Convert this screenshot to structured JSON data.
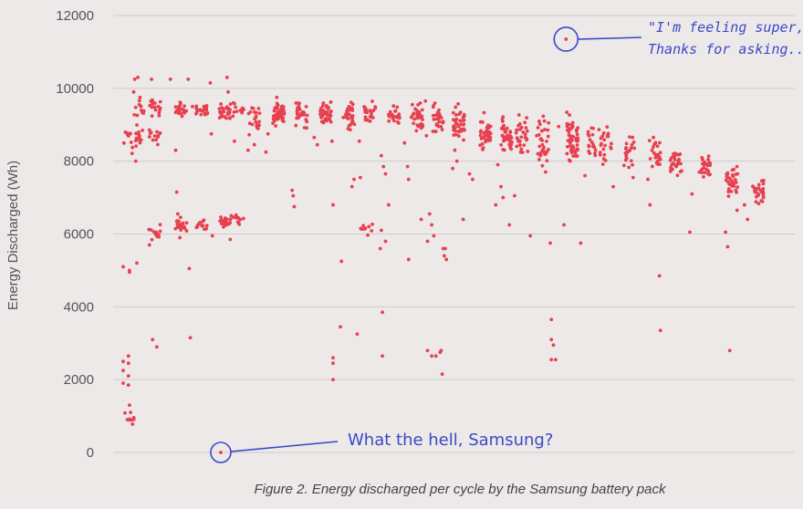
{
  "chart_data": {
    "type": "scatter",
    "caption": "Figure 2. Energy discharged per cycle by the Samsung battery pack",
    "title": "",
    "xlabel": "",
    "ylabel": "Energy Discharged (Wh)",
    "ylim": [
      0,
      12000
    ],
    "yticks": [
      "0",
      "2000",
      "4000",
      "6000",
      "8000",
      "10000",
      "12000"
    ],
    "grid": "horizontal",
    "series": [
      {
        "color": "#e84050",
        "clusters": [
          {
            "x": 0.5,
            "y": 8550,
            "s": 200,
            "n": 10
          },
          {
            "x": 1.5,
            "y": 8650,
            "s": 150,
            "n": 15
          },
          {
            "x": 1.5,
            "y": 9450,
            "s": 120,
            "n": 10
          },
          {
            "x": 3.0,
            "y": 9450,
            "s": 130,
            "n": 16
          },
          {
            "x": 3.0,
            "y": 8700,
            "s": 110,
            "n": 12
          },
          {
            "x": 3.0,
            "y": 6050,
            "s": 90,
            "n": 14
          },
          {
            "x": 5.5,
            "y": 9420,
            "s": 90,
            "n": 24
          },
          {
            "x": 5.5,
            "y": 6200,
            "s": 110,
            "n": 18
          },
          {
            "x": 7.5,
            "y": 9370,
            "s": 90,
            "n": 22
          },
          {
            "x": 7.5,
            "y": 6270,
            "s": 80,
            "n": 14
          },
          {
            "x": 9.7,
            "y": 9380,
            "s": 90,
            "n": 26
          },
          {
            "x": 9.7,
            "y": 6330,
            "s": 90,
            "n": 22
          },
          {
            "x": 11.0,
            "y": 9450,
            "s": 130,
            "n": 12
          },
          {
            "x": 11.0,
            "y": 6370,
            "s": 70,
            "n": 10
          },
          {
            "x": 12.5,
            "y": 9200,
            "s": 210,
            "n": 22
          },
          {
            "x": 14.8,
            "y": 9300,
            "s": 170,
            "n": 45
          },
          {
            "x": 17.0,
            "y": 9320,
            "s": 160,
            "n": 32
          },
          {
            "x": 19.3,
            "y": 9330,
            "s": 160,
            "n": 38
          },
          {
            "x": 21.5,
            "y": 9270,
            "s": 190,
            "n": 34
          },
          {
            "x": 23.5,
            "y": 9350,
            "s": 150,
            "n": 22
          },
          {
            "x": 23.2,
            "y": 6100,
            "s": 100,
            "n": 12
          },
          {
            "x": 25.8,
            "y": 9270,
            "s": 110,
            "n": 24
          },
          {
            "x": 28.0,
            "y": 9150,
            "s": 190,
            "n": 36
          },
          {
            "x": 30.0,
            "y": 9100,
            "s": 200,
            "n": 32
          },
          {
            "x": 32.0,
            "y": 8950,
            "s": 250,
            "n": 42
          },
          {
            "x": 34.5,
            "y": 8780,
            "s": 220,
            "n": 36
          },
          {
            "x": 36.5,
            "y": 8750,
            "s": 240,
            "n": 42
          },
          {
            "x": 38.0,
            "y": 8650,
            "s": 280,
            "n": 30
          },
          {
            "x": 40.0,
            "y": 8450,
            "s": 320,
            "n": 34
          },
          {
            "x": 42.8,
            "y": 8600,
            "s": 300,
            "n": 56
          },
          {
            "x": 44.8,
            "y": 8550,
            "s": 200,
            "n": 20
          },
          {
            "x": 46.0,
            "y": 8400,
            "s": 260,
            "n": 22
          },
          {
            "x": 48.2,
            "y": 8300,
            "s": 200,
            "n": 22
          },
          {
            "x": 50.7,
            "y": 8200,
            "s": 200,
            "n": 28
          },
          {
            "x": 52.7,
            "y": 8050,
            "s": 220,
            "n": 28
          },
          {
            "x": 55.5,
            "y": 7850,
            "s": 170,
            "n": 26
          },
          {
            "x": 58.0,
            "y": 7450,
            "s": 260,
            "n": 32
          },
          {
            "x": 60.5,
            "y": 7200,
            "s": 180,
            "n": 28
          },
          {
            "x": 0.5,
            "y": 850,
            "s": 120,
            "n": 8
          }
        ],
        "points": [
          [
            0,
            5100
          ],
          [
            0,
            2500
          ],
          [
            0,
            2250
          ],
          [
            0,
            1900
          ],
          [
            0.5,
            2650
          ],
          [
            0.5,
            2450
          ],
          [
            0.5,
            2100
          ],
          [
            0.5,
            1850
          ],
          [
            0.6,
            1300
          ],
          [
            0.7,
            1100
          ],
          [
            0.6,
            4950
          ],
          [
            0.6,
            5000
          ],
          [
            1.0,
            9900
          ],
          [
            1.1,
            10250
          ],
          [
            1.4,
            10300
          ],
          [
            1.2,
            8000
          ],
          [
            1.3,
            5200
          ],
          [
            1.6,
            9750
          ],
          [
            1.7,
            9500
          ],
          [
            2.5,
            5700
          ],
          [
            2.7,
            10250
          ],
          [
            2.8,
            3100
          ],
          [
            3.2,
            2900
          ],
          [
            4.5,
            10250
          ],
          [
            5.0,
            8300
          ],
          [
            5.1,
            7150
          ],
          [
            5.2,
            6550
          ],
          [
            5.3,
            6350
          ],
          [
            5.4,
            5900
          ],
          [
            6.2,
            10250
          ],
          [
            6.3,
            5050
          ],
          [
            6.4,
            3150
          ],
          [
            6.6,
            9500
          ],
          [
            8.3,
            10150
          ],
          [
            8.4,
            8750
          ],
          [
            8.5,
            5950
          ],
          [
            9.9,
            10300
          ],
          [
            10.0,
            9900
          ],
          [
            10.2,
            5850
          ],
          [
            10.5,
            9600
          ],
          [
            10.3,
            6500
          ],
          [
            10.6,
            8550
          ],
          [
            11.9,
            8300
          ],
          [
            12.5,
            8450
          ],
          [
            13.8,
            8750
          ],
          [
            13.6,
            8250
          ],
          [
            16.1,
            7200
          ],
          [
            16.2,
            7050
          ],
          [
            16.3,
            6750
          ],
          [
            18.2,
            8650
          ],
          [
            18.5,
            8450
          ],
          [
            19.9,
            8550
          ],
          [
            20.0,
            6800
          ],
          [
            20.0,
            2600
          ],
          [
            20.0,
            2450
          ],
          [
            20.0,
            2000
          ],
          [
            20.7,
            3450
          ],
          [
            20.8,
            5250
          ],
          [
            21.8,
            7300
          ],
          [
            22.0,
            7500
          ],
          [
            22.6,
            7550
          ],
          [
            22.3,
            3250
          ],
          [
            22.5,
            8550
          ],
          [
            24.6,
            8150
          ],
          [
            24.8,
            7850
          ],
          [
            24.6,
            6100
          ],
          [
            24.5,
            5600
          ],
          [
            24.7,
            3850
          ],
          [
            24.7,
            2650
          ],
          [
            25.3,
            6800
          ],
          [
            25.0,
            7650
          ],
          [
            25.0,
            5800
          ],
          [
            26.8,
            8500
          ],
          [
            27.1,
            7850
          ],
          [
            27.2,
            7500
          ],
          [
            27.2,
            5300
          ],
          [
            28.4,
            6400
          ],
          [
            28.8,
            9650
          ],
          [
            28.9,
            8700
          ],
          [
            29.2,
            6550
          ],
          [
            29.4,
            6250
          ],
          [
            29.6,
            5950
          ],
          [
            29.0,
            5800
          ],
          [
            29.0,
            2800
          ],
          [
            29.4,
            2650
          ],
          [
            29.8,
            2650
          ],
          [
            30.2,
            2750
          ],
          [
            30.3,
            2800
          ],
          [
            30.4,
            2150
          ],
          [
            30.5,
            5600
          ],
          [
            30.6,
            5400
          ],
          [
            30.8,
            5300
          ],
          [
            30.7,
            5600
          ],
          [
            31.6,
            8300
          ],
          [
            31.8,
            8000
          ],
          [
            31.4,
            7800
          ],
          [
            32.4,
            6400
          ],
          [
            33.0,
            7650
          ],
          [
            33.3,
            7500
          ],
          [
            35.5,
            6800
          ],
          [
            35.7,
            7900
          ],
          [
            36.0,
            7300
          ],
          [
            36.2,
            7000
          ],
          [
            36.8,
            6250
          ],
          [
            37.3,
            7050
          ],
          [
            38.8,
            5950
          ],
          [
            39.4,
            8700
          ],
          [
            40.7,
            5750
          ],
          [
            40.8,
            3650
          ],
          [
            40.8,
            3100
          ],
          [
            41.0,
            2950
          ],
          [
            40.8,
            2550
          ],
          [
            41.2,
            2550
          ],
          [
            41.5,
            8950
          ],
          [
            42.0,
            6250
          ],
          [
            43.6,
            5750
          ],
          [
            44.0,
            7600
          ],
          [
            46.7,
            7300
          ],
          [
            48.6,
            7550
          ],
          [
            50.0,
            7500
          ],
          [
            50.2,
            6800
          ],
          [
            51.1,
            4850
          ],
          [
            51.2,
            3350
          ],
          [
            54.0,
            6050
          ],
          [
            54.2,
            7100
          ],
          [
            54.9,
            7700
          ],
          [
            57.4,
            6050
          ],
          [
            57.6,
            5650
          ],
          [
            57.8,
            2800
          ],
          [
            58.5,
            6650
          ],
          [
            59.5,
            6400
          ],
          [
            59.2,
            6800
          ]
        ]
      }
    ],
    "annotations": [
      {
        "text": "What the hell, Samsung?",
        "x": 9.3,
        "y": 0
      },
      {
        "text_lines": [
          "\"I'm feeling super,",
          "Thanks for asking...\""
        ],
        "x": 42.2,
        "y": 11350
      }
    ]
  }
}
